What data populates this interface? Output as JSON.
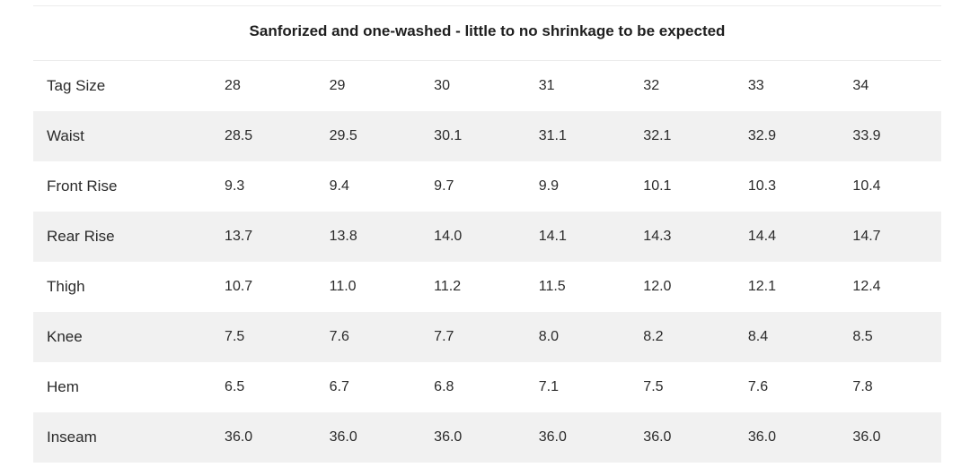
{
  "caption": "Sanforized and one-washed - little to no shrinkage to be expected",
  "rows": [
    {
      "label": "Tag Size",
      "values": [
        "28",
        "29",
        "30",
        "31",
        "32",
        "33",
        "34"
      ]
    },
    {
      "label": "Waist",
      "values": [
        "28.5",
        "29.5",
        "30.1",
        "31.1",
        "32.1",
        "32.9",
        "33.9"
      ]
    },
    {
      "label": "Front Rise",
      "values": [
        "9.3",
        "9.4",
        "9.7",
        "9.9",
        "10.1",
        "10.3",
        "10.4"
      ]
    },
    {
      "label": "Rear Rise",
      "values": [
        "13.7",
        "13.8",
        "14.0",
        "14.1",
        "14.3",
        "14.4",
        "14.7"
      ]
    },
    {
      "label": "Thigh",
      "values": [
        "10.7",
        "11.0",
        "11.2",
        "11.5",
        "12.0",
        "12.1",
        "12.4"
      ]
    },
    {
      "label": "Knee",
      "values": [
        "7.5",
        "7.6",
        "7.7",
        "8.0",
        "8.2",
        "8.4",
        "8.5"
      ]
    },
    {
      "label": "Hem",
      "values": [
        "6.5",
        "6.7",
        "6.8",
        "7.1",
        "7.5",
        "7.6",
        "7.8"
      ]
    },
    {
      "label": "Inseam",
      "values": [
        "36.0",
        "36.0",
        "36.0",
        "36.0",
        "36.0",
        "36.0",
        "36.0"
      ]
    }
  ]
}
